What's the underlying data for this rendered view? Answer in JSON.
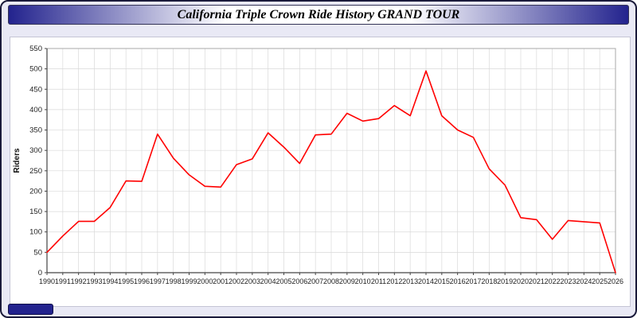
{
  "page": {
    "title": "California Triple Crown Ride History GRAND TOUR"
  },
  "colors": {
    "line": "#ff0000",
    "background": "#e9e9f5",
    "title_bar_edge": "#23238e",
    "grid": "#d9d9d9",
    "axis": "#444444",
    "plot_background": "#ffffff"
  },
  "chart_data": {
    "type": "line",
    "title": "California Triple Crown Ride History GRAND TOUR",
    "xlabel": "",
    "ylabel": "Riders",
    "ylim": [
      0,
      550
    ],
    "ytick_step": 50,
    "grid": true,
    "legend": "none",
    "x": [
      1990,
      1991,
      1992,
      1993,
      1994,
      1995,
      1996,
      1997,
      1998,
      1999,
      2000,
      2001,
      2002,
      2003,
      2004,
      2005,
      2006,
      2007,
      2008,
      2009,
      2010,
      2011,
      2012,
      2013,
      2014,
      2015,
      2016,
      2017,
      2018,
      2019,
      2020,
      2021,
      2022,
      2023,
      2024,
      2025,
      2026
    ],
    "series": [
      {
        "name": "Riders",
        "values": [
          50,
          90,
          126,
          126,
          160,
          225,
          224,
          340,
          281,
          240,
          212,
          210,
          265,
          279,
          343,
          308,
          268,
          338,
          340,
          391,
          372,
          378,
          410,
          385,
          495,
          385,
          350,
          332,
          255,
          215,
          135,
          130,
          82,
          128,
          125,
          122,
          0
        ]
      }
    ]
  }
}
